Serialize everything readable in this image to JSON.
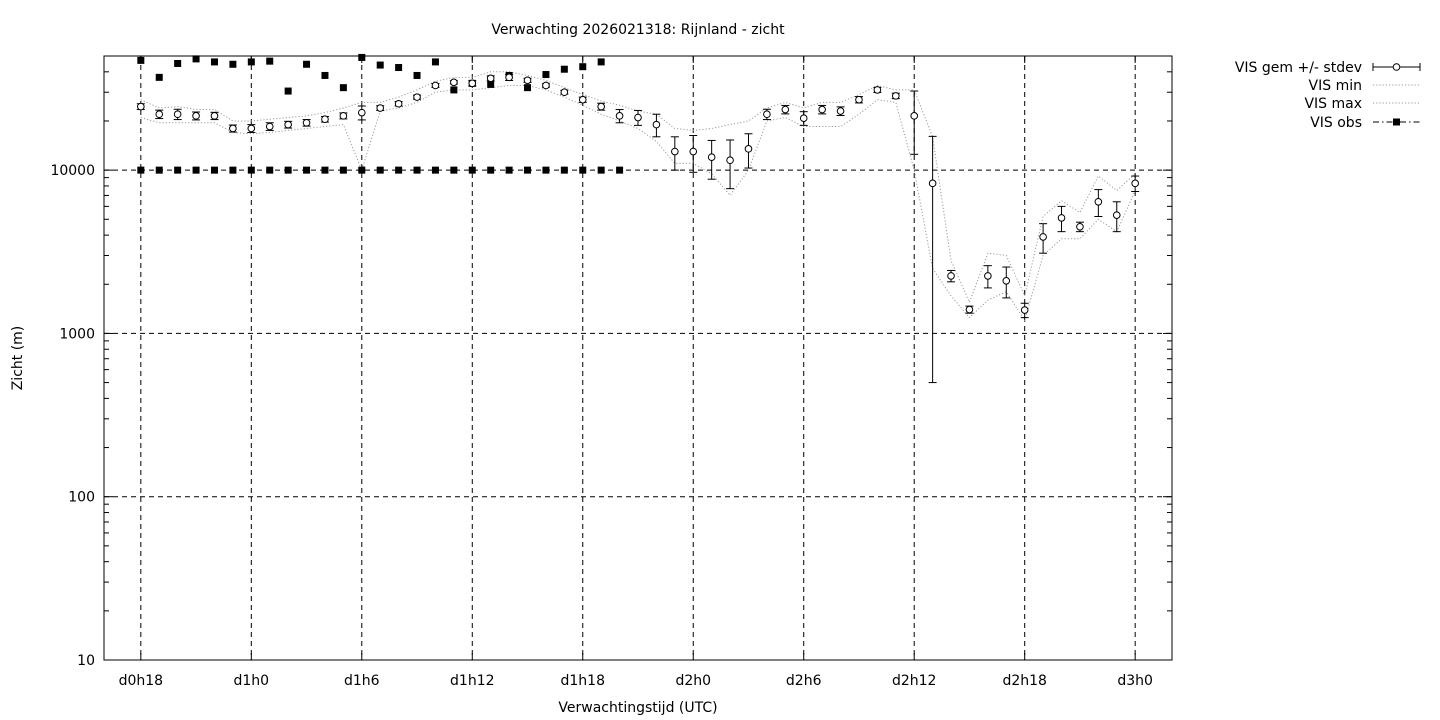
{
  "chart_data": {
    "type": "scatter",
    "title": "Verwachting 2026021318: Rijnland - zicht",
    "xlabel": "Verwachtingstijd (UTC)",
    "ylabel": "Zicht (m)",
    "y_scale": "log",
    "ylim": [
      10,
      50000
    ],
    "xlim": [
      -2,
      56
    ],
    "x_unit": "hours since d0h18",
    "x_ticks": [
      {
        "x": 0,
        "label": "d0h18"
      },
      {
        "x": 6,
        "label": "d1h0"
      },
      {
        "x": 12,
        "label": "d1h6"
      },
      {
        "x": 18,
        "label": "d1h12"
      },
      {
        "x": 24,
        "label": "d1h18"
      },
      {
        "x": 30,
        "label": "d2h0"
      },
      {
        "x": 36,
        "label": "d2h6"
      },
      {
        "x": 42,
        "label": "d2h12"
      },
      {
        "x": 48,
        "label": "d2h18"
      },
      {
        "x": 54,
        "label": "d3h0"
      }
    ],
    "y_ticks": [
      {
        "y": 10,
        "label": "10"
      },
      {
        "y": 100,
        "label": "100"
      },
      {
        "y": 1000,
        "label": "1000"
      },
      {
        "y": 10000,
        "label": "10000"
      }
    ],
    "grid": "dashed at major ticks",
    "legend_position": "outside top-right",
    "legend": [
      {
        "label": "VIS gem +/- stdev",
        "style": "open circles with error bars"
      },
      {
        "label": "VIS min",
        "style": "dotted grey line"
      },
      {
        "label": "VIS max",
        "style": "dotted grey line"
      },
      {
        "label": "VIS obs",
        "style": "filled squares"
      }
    ],
    "series": [
      {
        "name": "VIS gem +/- stdev",
        "x": [
          0,
          1,
          2,
          3,
          4,
          5,
          6,
          7,
          8,
          9,
          10,
          11,
          12,
          13,
          14,
          15,
          16,
          17,
          18,
          19,
          20,
          21,
          22,
          23,
          24,
          25,
          26,
          27,
          28,
          29,
          30,
          31,
          32,
          33,
          34,
          35,
          36,
          37,
          38,
          39,
          40,
          41,
          42,
          43,
          44,
          45,
          46,
          47,
          48,
          49,
          50,
          51,
          52,
          53,
          54
        ],
        "mean": [
          24500,
          22000,
          22000,
          21500,
          21500,
          18000,
          18000,
          18500,
          19000,
          19500,
          20500,
          21500,
          22500,
          24000,
          25500,
          28000,
          33000,
          34500,
          34000,
          36500,
          37000,
          35500,
          33000,
          30000,
          27000,
          24500,
          21500,
          21000,
          19000,
          13000,
          13000,
          12000,
          11500,
          13500,
          22000,
          23500,
          20800,
          23500,
          23000,
          27000,
          31000,
          28500,
          21500,
          8300,
          2250,
          1400,
          2250,
          2100,
          1390,
          3900,
          5100,
          4500,
          6400,
          5300,
          8300
        ],
        "stdev": [
          1000,
          1300,
          1600,
          1200,
          1100,
          900,
          1000,
          1000,
          900,
          900,
          800,
          900,
          2200,
          800,
          800,
          800,
          900,
          800,
          1300,
          1300,
          1600,
          1000,
          800,
          800,
          1000,
          1200,
          2000,
          2200,
          3000,
          3000,
          3300,
          3200,
          3800,
          3200,
          1600,
          1400,
          2000,
          1400,
          1400,
          1200,
          1100,
          1100,
          9000,
          7800,
          180,
          70,
          350,
          450,
          140,
          800,
          900,
          300,
          1200,
          1100,
          900
        ]
      },
      {
        "name": "VIS min",
        "x": [
          0,
          1,
          2,
          3,
          4,
          5,
          6,
          7,
          8,
          9,
          10,
          11,
          12,
          13,
          14,
          15,
          16,
          17,
          18,
          19,
          20,
          21,
          22,
          23,
          24,
          25,
          26,
          27,
          28,
          29,
          30,
          31,
          32,
          33,
          34,
          35,
          36,
          37,
          38,
          39,
          40,
          41,
          42,
          43,
          44,
          45,
          46,
          47,
          48,
          49,
          50,
          51,
          52,
          53,
          54
        ],
        "values": [
          21000,
          19500,
          19500,
          19500,
          19500,
          17000,
          16700,
          17000,
          17500,
          18000,
          18500,
          19000,
          10000,
          23000,
          24000,
          26000,
          30000,
          31000,
          31000,
          32000,
          33000,
          33000,
          31000,
          28000,
          25000,
          22000,
          20000,
          18000,
          15000,
          11000,
          11000,
          9500,
          7000,
          10000,
          20000,
          21000,
          18500,
          18500,
          18500,
          22000,
          27000,
          26000,
          10000,
          2500,
          1700,
          1250,
          1600,
          1800,
          1200,
          3000,
          3800,
          3800,
          5000,
          4200,
          7500
        ]
      },
      {
        "name": "VIS max",
        "x": [
          0,
          1,
          2,
          3,
          4,
          5,
          6,
          7,
          8,
          9,
          10,
          11,
          12,
          13,
          14,
          15,
          16,
          17,
          18,
          19,
          20,
          21,
          22,
          23,
          24,
          25,
          26,
          27,
          28,
          29,
          30,
          31,
          32,
          33,
          34,
          35,
          36,
          37,
          38,
          39,
          40,
          41,
          42,
          43,
          44,
          45,
          46,
          47,
          48,
          49,
          50,
          51,
          52,
          53,
          54
        ],
        "values": [
          27000,
          24000,
          24500,
          23500,
          23500,
          20000,
          20000,
          20500,
          21000,
          21500,
          22500,
          24000,
          26000,
          26000,
          28000,
          31000,
          35000,
          37000,
          37000,
          40000,
          40000,
          38000,
          35500,
          32000,
          29000,
          26500,
          25000,
          23000,
          22000,
          18000,
          17500,
          18000,
          19000,
          20000,
          24000,
          26000,
          24000,
          26000,
          26000,
          29000,
          33000,
          31000,
          31000,
          16000,
          2800,
          1550,
          3100,
          3000,
          1700,
          5200,
          6500,
          5500,
          9200,
          7500,
          9500
        ]
      },
      {
        "name": "VIS obs",
        "x": [
          0,
          1,
          2,
          3,
          4,
          5,
          6,
          7,
          8,
          9,
          10,
          11,
          12,
          13,
          14,
          15,
          16,
          17,
          18,
          19,
          20,
          21,
          22,
          23,
          24,
          25,
          0,
          1,
          2,
          3,
          4,
          5,
          6,
          7,
          8,
          9,
          10,
          11,
          12,
          13,
          14,
          15,
          16,
          17,
          18,
          19,
          20,
          21,
          22,
          23,
          24,
          25,
          26
        ],
        "values": [
          47000,
          37000,
          45000,
          48000,
          46000,
          44500,
          46000,
          46500,
          30500,
          44500,
          38000,
          32000,
          49000,
          44000,
          42500,
          38000,
          46000,
          31000,
          34000,
          33500,
          38000,
          32000,
          38500,
          41500,
          43000,
          46000,
          10000,
          10000,
          10000,
          10000,
          10000,
          10000,
          10000,
          10000,
          10000,
          10000,
          10000,
          10000,
          10000,
          10000,
          10000,
          10000,
          10000,
          10000,
          10000,
          10000,
          10000,
          10000,
          10000,
          10000,
          10000,
          10000,
          10000
        ]
      }
    ]
  }
}
